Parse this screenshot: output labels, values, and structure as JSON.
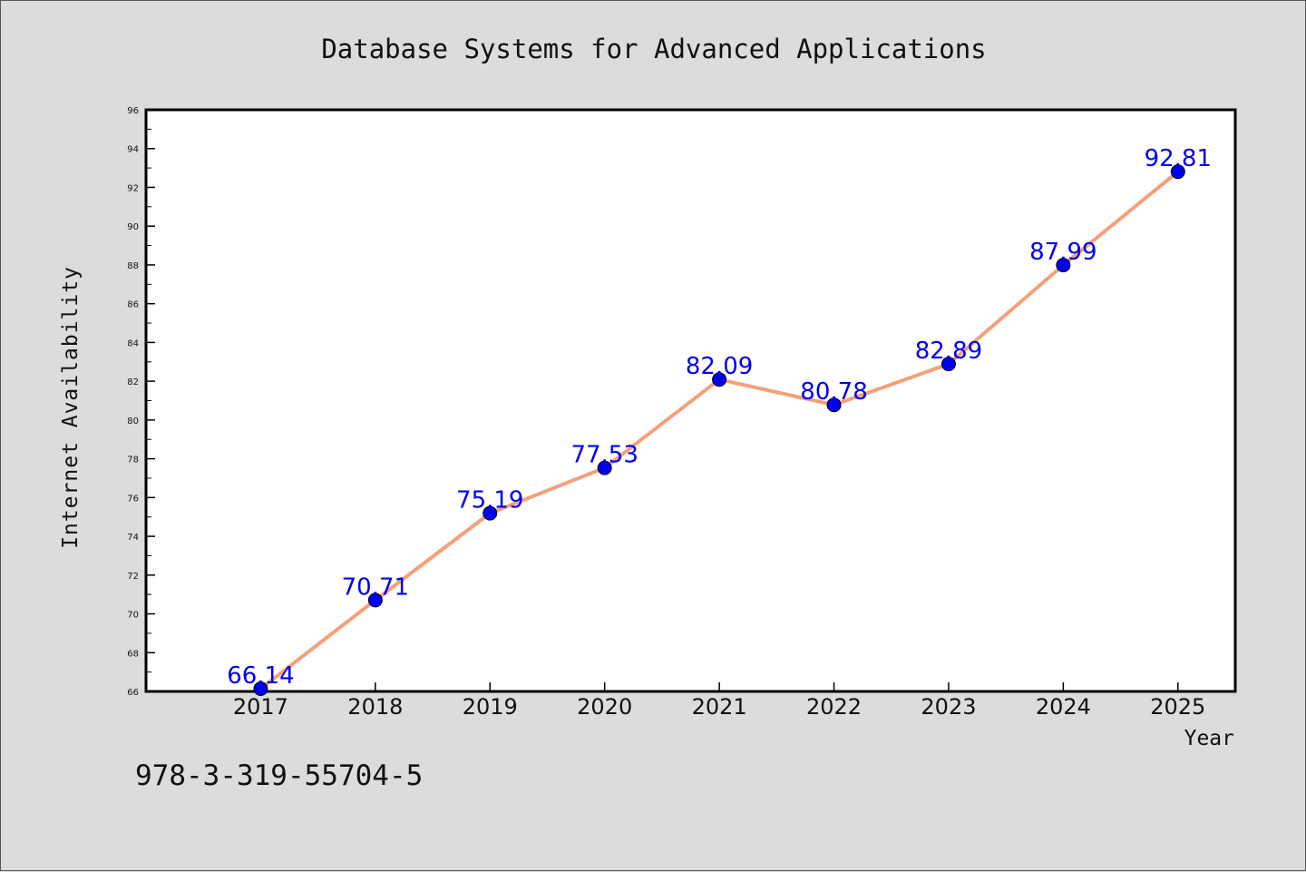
{
  "chart_data": {
    "type": "line",
    "title": "Database Systems for Advanced Applications",
    "xlabel": "Year",
    "ylabel": "Internet Availability",
    "categories": [
      "2017",
      "2018",
      "2019",
      "2020",
      "2021",
      "2022",
      "2023",
      "2024",
      "2025"
    ],
    "series": [
      {
        "values": [
          66.14,
          70.71,
          75.19,
          77.53,
          82.09,
          80.78,
          82.89,
          87.99,
          92.81
        ],
        "labels": [
          "66.14",
          "70.71",
          "75.19",
          "77.53",
          "82.09",
          "80.78",
          "82.89",
          "87.99",
          "92.81"
        ],
        "line_color": "#f4a07a",
        "marker_color": "#0000ee",
        "label_color": "#0000ee"
      }
    ],
    "ylim": [
      66,
      96
    ],
    "yticks": [
      "66",
      "68",
      "70",
      "72",
      "74",
      "76",
      "78",
      "80",
      "82",
      "84",
      "86",
      "88",
      "90",
      "92",
      "94",
      "96"
    ],
    "xlim": [
      2016.0,
      2025.5
    ],
    "grid": false,
    "legend": "none"
  },
  "annotation": "978-3-319-55704-5",
  "colors": {
    "background": "#dcdcdc",
    "plot_background": "#ffffff",
    "axis": "#000000"
  }
}
